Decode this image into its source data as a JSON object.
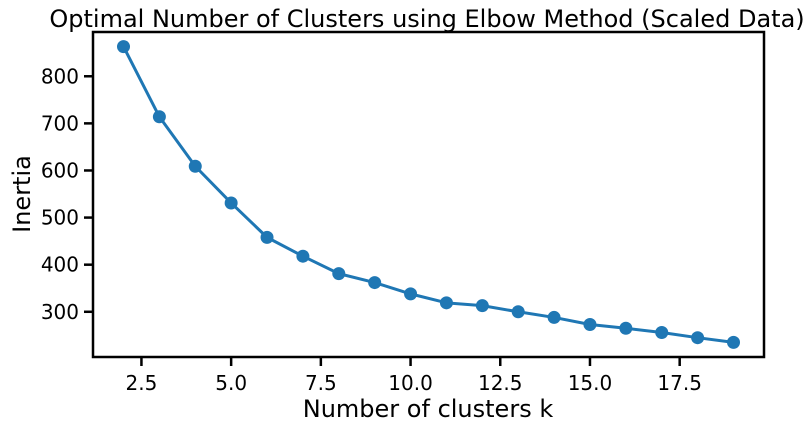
{
  "chart_data": {
    "type": "line",
    "title": "Optimal Number of Clusters using Elbow Method (Scaled Data)",
    "xlabel": "Number of clusters k",
    "ylabel": "Inertia",
    "x": [
      2,
      3,
      4,
      5,
      6,
      7,
      8,
      9,
      10,
      11,
      12,
      13,
      14,
      15,
      16,
      17,
      18,
      19
    ],
    "y": [
      863,
      714,
      609,
      531,
      458,
      418,
      381,
      362,
      338,
      319,
      313,
      300,
      288,
      273,
      265,
      256,
      245,
      235
    ],
    "xlim": [
      1.15,
      19.85
    ],
    "ylim": [
      204,
      894
    ],
    "xticks": [
      2.5,
      5.0,
      7.5,
      10.0,
      12.5,
      15.0,
      17.5
    ],
    "xtick_labels": [
      "2.5",
      "5.0",
      "7.5",
      "10.0",
      "12.5",
      "15.0",
      "17.5"
    ],
    "yticks": [
      300,
      400,
      500,
      600,
      700,
      800
    ],
    "ytick_labels": [
      "300",
      "400",
      "500",
      "600",
      "700",
      "800"
    ],
    "grid": false,
    "legend": "none",
    "marker": "circle",
    "color": "#1f77b4"
  }
}
